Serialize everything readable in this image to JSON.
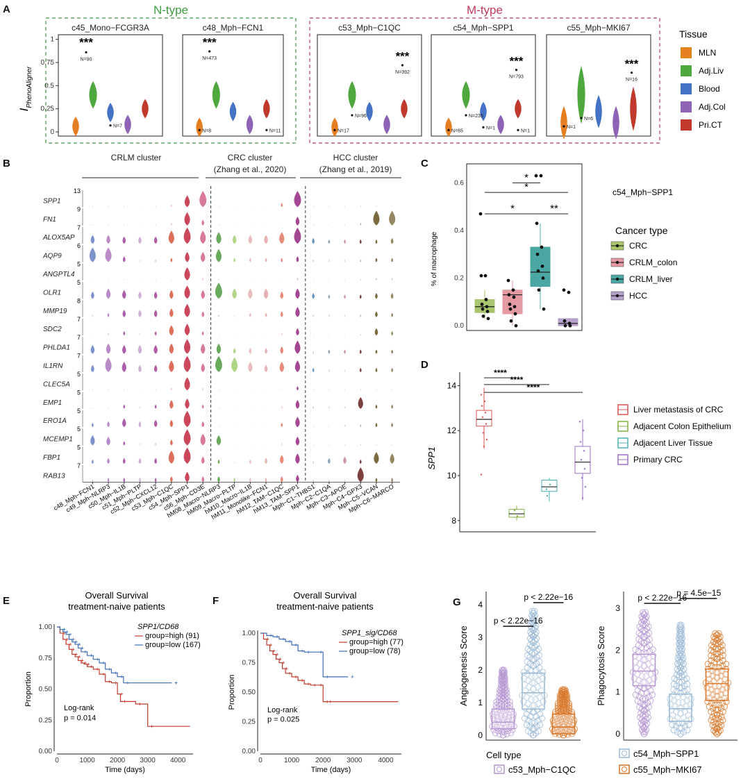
{
  "colors": {
    "tissue": [
      "#e67e22",
      "#4fa83d",
      "#4472c4",
      "#8e63b5",
      "#c0392b"
    ],
    "ntype": "#3c9a3c",
    "mtype": "#c23b5d",
    "cancer": [
      "#a9c66e",
      "#e49aa3",
      "#4aa7a3",
      "#b6a0cc"
    ],
    "tissueD": [
      "#d9534f",
      "#7fb03c",
      "#4bb0b5",
      "#9b6fc7"
    ],
    "surv_high": "#c0392b",
    "surv_low": "#3f6cb8",
    "g": [
      "#b89ad3",
      "#9fbcd6",
      "#d8792d"
    ]
  },
  "panelA": {
    "label": "A",
    "ntype_label": "N-type",
    "mtype_label": "M-type",
    "ylabel": "I",
    "ylabel_sub": "PhenoAligner",
    "yticks": [
      "0",
      "0.25",
      "0.5",
      "0.75",
      "1"
    ],
    "legend_title": "Tissue",
    "legend": [
      "MLN",
      "Adj.Liv",
      "Blood",
      "Adj.Col",
      "Pri.CT"
    ],
    "chart_data": {
      "type": "violin",
      "ylim": [
        0,
        1
      ],
      "tissues": [
        "MLN",
        "Adj.Liv",
        "Blood",
        "Adj.Col",
        "Pri.CT"
      ],
      "facets": [
        {
          "name": "c45_Mono−FCGR3A",
          "centers": [
            0.06,
            0.4,
            0.21,
            0.08,
            0.25
          ],
          "star_text": "***",
          "star_y": 0.97,
          "n_label": "N=90",
          "n_y": 0.89,
          "extra": [
            {
              "label": "N=7",
              "x": 2,
              "y": 0.07
            }
          ]
        },
        {
          "name": "c48_Mph−FCN1",
          "centers": [
            0.05,
            0.4,
            0.22,
            0.08,
            0.25
          ],
          "star_text": "***",
          "star_y": 0.97,
          "n_label": "N=473",
          "n_y": 0.9,
          "extra": [
            {
              "label": "N=8",
              "x": 0,
              "y": 0.02
            },
            {
              "label": "N=11",
              "x": 4,
              "y": 0.02
            }
          ]
        },
        {
          "name": "c53_Mph−C1QC",
          "centers": [
            0.05,
            0.4,
            0.22,
            0.08,
            0.25
          ],
          "star_text": "***",
          "star_y": 0.82,
          "n_label": "N=392",
          "n_y": 0.75,
          "extra": [
            {
              "label": "N=17",
              "x": 0,
              "y": 0.02
            },
            {
              "label": "N=96",
              "x": 1,
              "y": 0.18
            }
          ]
        },
        {
          "name": "c54_Mph−SPP1",
          "centers": [
            0.05,
            0.4,
            0.22,
            0.08,
            0.25
          ],
          "star_text": "***",
          "star_y": 0.77,
          "n_label": "N=793",
          "n_y": 0.7,
          "extra": [
            {
              "label": "N=65",
              "x": 0,
              "y": 0.02
            },
            {
              "label": "N=235",
              "x": 1,
              "y": 0.18
            },
            {
              "label": "N=1",
              "x": 2,
              "y": 0.05
            },
            {
              "label": "N=1",
              "x": 4,
              "y": 0.02
            }
          ]
        },
        {
          "name": "c55_Mph−MKI67",
          "centers": [
            0.1,
            0.4,
            0.22,
            0.1,
            0.25
          ],
          "star_text": "***",
          "star_y": 0.74,
          "n_label": "N=16",
          "n_y": 0.67,
          "extra": [
            {
              "label": "N=1",
              "x": 0,
              "y": 0.06
            },
            {
              "label": "N=6",
              "x": 1,
              "y": 0.15
            }
          ]
        }
      ]
    }
  },
  "panelB": {
    "label": "B",
    "group_labels": [
      "CRLM cluster",
      "CRC cluster",
      "(Zhang et al., 2020)",
      "HCC cluster",
      "(Zhang et al., 2019)"
    ],
    "chart_data": {
      "type": "stacked_violin",
      "genes": [
        "SPP1",
        "FN1",
        "ALOX5AP",
        "AQP9",
        "ANGPTL4",
        "OLR1",
        "MMP19",
        "SDC2",
        "PHLDA1",
        "IL1RN",
        "CLEC5A",
        "EMP1",
        "ERO1A",
        "MCEMP1",
        "FBP1",
        "RAB13"
      ],
      "gene_max": [
        "13",
        "9",
        "7",
        "6",
        "5",
        "5",
        "8",
        "7",
        "7",
        "7",
        "5",
        "5",
        "5",
        "5",
        "5",
        "7"
      ],
      "clusters": [
        "c48_Mph−FCN1",
        "c49_Mph−NLRP3",
        "c50_Mph−IL1B",
        "c51_Mph−PLTP",
        "c52_Mph−CXCL12",
        "c53_Mph−C1QC",
        "c54_Mph−SPP1",
        "c56_Mph−CD3E",
        "hM08_Macro−NLRP3",
        "hM09_Macro−PLTP",
        "hM10_Macro−IL1B",
        "hM11_Monolike−FCN1",
        "hM12_TAM−C1QC",
        "hM13_TAM−SPP1",
        "Mph−C1−THBS1",
        "Mph−C2−C1QA",
        "Mph−C3−APOE",
        "Mph−C4−GPX3",
        "Mph−C5−VCAN",
        "Mph−C6−MARCO"
      ],
      "cluster_colors": [
        "#6e86c4",
        "#b17fc2",
        "#a34fa3",
        "#c9a6d3",
        "#a84b9a",
        "#d9604a",
        "#c5334a",
        "#d36a8f",
        "#5aa14a",
        "#a8d07a",
        "#e8b6b6",
        "#e3a8a8",
        "#e67d6b",
        "#9b3487",
        "#5a8ab5",
        "#8a9bb0",
        "#c98aa0",
        "#6e2a2a",
        "#6b5a2a",
        "#8a7a52"
      ]
    }
  },
  "panelC": {
    "label": "C",
    "subtitle": "c54_Mph−SPP1",
    "ylabel": "% of macrophage",
    "yticks": [
      "0.0",
      "0.2",
      "0.4",
      "0.6"
    ],
    "legend_title": "Cancer type",
    "legend": [
      "CRC",
      "CRLM_colon",
      "CRLM_liver",
      "HCC"
    ],
    "sig": [
      "*",
      "*",
      "*",
      "**"
    ],
    "chart_data": {
      "type": "box",
      "ylim": [
        -0.02,
        0.68
      ],
      "groups": [
        "CRC",
        "CRLM_colon",
        "CRLM_liver",
        "HCC"
      ],
      "q1": [
        0.055,
        0.05,
        0.165,
        0.0
      ],
      "median": [
        0.08,
        0.13,
        0.225,
        0.01
      ],
      "q3": [
        0.11,
        0.15,
        0.33,
        0.03
      ],
      "wlo": [
        0.03,
        0.0,
        0.07,
        0.0
      ],
      "whi": [
        0.15,
        0.19,
        0.43,
        0.03
      ],
      "points": [
        [
          0.47,
          0.21,
          0.21,
          0.11,
          0.09,
          0.08,
          0.07,
          0.06,
          0.04,
          0.03
        ],
        [
          0.19,
          0.15,
          0.13,
          0.12,
          0.09,
          0.08,
          0.07,
          0.05,
          0.02,
          0.0
        ],
        [
          0.63,
          0.63,
          0.43,
          0.33,
          0.3,
          0.25,
          0.23,
          0.2,
          0.15,
          0.07
        ],
        [
          0.15,
          0.14,
          0.02,
          0.01,
          0.0,
          0.0
        ]
      ]
    }
  },
  "panelD": {
    "label": "D",
    "ylabel": "SPP1",
    "yticks": [
      "8",
      "10",
      "12",
      "14"
    ],
    "sig": [
      "****",
      "****",
      "****"
    ],
    "legend": [
      "Liver metastasis of CRC",
      "Adjacent Colon Epithelium",
      "Adjacent Liver Tissue",
      "Primary CRC"
    ],
    "chart_data": {
      "type": "box",
      "ylim": [
        7.5,
        14.6
      ],
      "groups": [
        "Liver metastasis of CRC",
        "Adjacent Colon Epithelium",
        "Adjacent Liver Tissue",
        "Primary CRC"
      ],
      "q1": [
        12.2,
        8.15,
        9.3,
        10.1
      ],
      "median": [
        12.5,
        8.3,
        9.5,
        10.6
      ],
      "q3": [
        12.9,
        8.5,
        9.8,
        11.3
      ],
      "wlo": [
        11.2,
        8.0,
        8.85,
        8.9
      ],
      "whi": [
        13.9,
        8.65,
        9.9,
        12.5
      ]
    }
  },
  "panelE": {
    "label": "E",
    "title1": "Overall Survival",
    "title2": "treatment-naive patients",
    "signature": "SPP1/CD68",
    "legend": [
      "group=high (91)",
      "group=low (167)"
    ],
    "test": "Log-rank",
    "pvalue": "p = 0.014",
    "ylabel": "Proportion",
    "xlabel": "Time (days)",
    "xticks": [
      "0",
      "1000",
      "2000",
      "3000",
      "4000"
    ],
    "yticks": [
      "0.00",
      "0.25",
      "0.50",
      "0.75",
      "1.00"
    ],
    "chart_data": {
      "type": "line",
      "xlim": [
        0,
        4500
      ],
      "ylim": [
        0,
        1
      ],
      "series": [
        {
          "name": "group=high (91)",
          "x": [
            0,
            100,
            200,
            300,
            400,
            500,
            600,
            700,
            800,
            900,
            1000,
            1200,
            1400,
            1600,
            1800,
            2000,
            2100,
            2600,
            3000,
            4400
          ],
          "y": [
            1.0,
            0.95,
            0.9,
            0.86,
            0.82,
            0.78,
            0.76,
            0.73,
            0.71,
            0.7,
            0.68,
            0.66,
            0.62,
            0.56,
            0.55,
            0.46,
            0.4,
            0.38,
            0.2,
            0.2
          ]
        },
        {
          "name": "group=low (167)",
          "x": [
            0,
            100,
            200,
            300,
            400,
            500,
            600,
            700,
            800,
            1000,
            1200,
            1400,
            1600,
            1800,
            2000,
            2200,
            3800
          ],
          "y": [
            1.0,
            0.98,
            0.96,
            0.94,
            0.9,
            0.88,
            0.86,
            0.83,
            0.8,
            0.77,
            0.74,
            0.71,
            0.66,
            0.63,
            0.6,
            0.55,
            0.55
          ]
        }
      ]
    }
  },
  "panelF": {
    "label": "F",
    "title1": "Overall Survival",
    "title2": "treatment-naive patients",
    "signature": "SPP1_sig/CD68",
    "legend": [
      "group=high (77)",
      "group=low (78)"
    ],
    "test": "Log-rank",
    "pvalue": "p = 0.025",
    "ylabel": "Proportion",
    "xlabel": "Time (days)",
    "xticks": [
      "0",
      "1000",
      "2000",
      "3000",
      "4000"
    ],
    "yticks": [
      "0.00",
      "0.25",
      "0.50",
      "0.75",
      "1.00"
    ],
    "chart_data": {
      "type": "line",
      "xlim": [
        0,
        4500
      ],
      "ylim": [
        0,
        1
      ],
      "series": [
        {
          "name": "group=high (77)",
          "x": [
            0,
            100,
            200,
            300,
            400,
            500,
            600,
            700,
            800,
            1000,
            1200,
            1400,
            1600,
            1800,
            2000,
            2100,
            4400
          ],
          "y": [
            1.0,
            0.95,
            0.9,
            0.85,
            0.82,
            0.78,
            0.75,
            0.7,
            0.66,
            0.63,
            0.6,
            0.57,
            0.56,
            0.56,
            0.42,
            0.42,
            0.42
          ]
        },
        {
          "name": "group=low (78)",
          "x": [
            0,
            200,
            400,
            600,
            800,
            1000,
            1200,
            1400,
            1800,
            2000,
            2800
          ],
          "y": [
            1.0,
            0.98,
            0.97,
            0.95,
            0.93,
            0.9,
            0.85,
            0.84,
            0.84,
            0.63,
            0.63
          ]
        }
      ]
    }
  },
  "panelG": {
    "label": "G",
    "legend_title": "Cell type",
    "legend": [
      "c53_Mph−C1QC",
      "c54_Mph−SPP1",
      "c55_Mph−MKI67"
    ],
    "chart_data": [
      {
        "type": "box",
        "ylabel": "Angiogenesis Score",
        "ylim": [
          -0.15,
          4.4
        ],
        "yticks": [
          "0",
          "1",
          "2",
          "3",
          "4"
        ],
        "groups": [
          "c53_Mph−C1QC",
          "c54_Mph−SPP1",
          "c55_Mph−MKI67"
        ],
        "q1": [
          0.2,
          0.8,
          0.05
        ],
        "median": [
          0.4,
          1.3,
          0.25
        ],
        "q3": [
          0.8,
          1.9,
          0.65
        ],
        "wlo": [
          0,
          0,
          0
        ],
        "whi": [
          2.0,
          3.8,
          1.4
        ],
        "sig": [
          "p < 2.22e−16",
          "p < 2.22e−16"
        ]
      },
      {
        "type": "box",
        "ylabel": "Phagocytosis Score",
        "ylim": [
          -0.15,
          3.4
        ],
        "yticks": [
          "0",
          "1",
          "2",
          "3"
        ],
        "groups": [
          "c53_Mph−C1QC",
          "c54_Mph−SPP1",
          "c55_Mph−MKI67"
        ],
        "q1": [
          1.15,
          0.3,
          0.8
        ],
        "median": [
          1.5,
          0.6,
          1.2
        ],
        "q3": [
          1.9,
          0.95,
          1.55
        ],
        "wlo": [
          0,
          0,
          0
        ],
        "whi": [
          2.9,
          2.6,
          2.4
        ],
        "sig": [
          "p < 2.22e−16",
          "p = 4.5e−15"
        ]
      }
    ]
  }
}
